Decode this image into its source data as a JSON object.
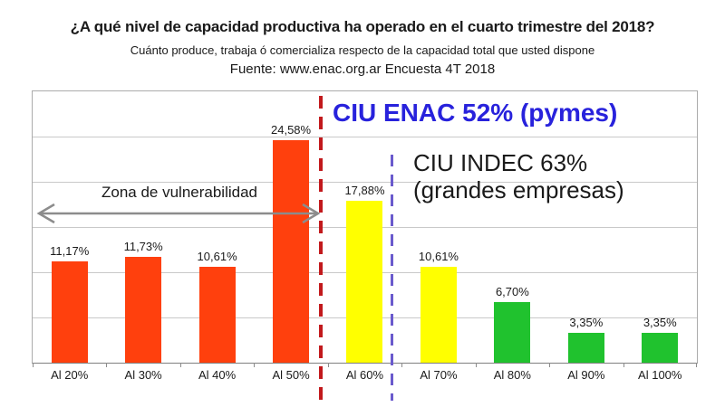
{
  "header": {
    "title": "¿A qué nivel de capacidad productiva ha operado en el cuarto trimestre del 2018?",
    "subtitle": "Cuánto produce, trabaja ó comercializa respecto de la capacidad total que usted dispone",
    "source": "Fuente: www.enac.org.ar Encuesta 4T 2018"
  },
  "chart_data": {
    "type": "bar",
    "title": "¿A qué nivel de capacidad productiva ha operado en el cuarto trimestre del 2018?",
    "categories": [
      "Al 20%",
      "Al 30%",
      "Al 40%",
      "Al 50%",
      "Al 60%",
      "Al 70%",
      "Al 80%",
      "Al 90%",
      "Al 100%"
    ],
    "values": [
      11.17,
      11.73,
      10.61,
      24.58,
      17.88,
      10.61,
      6.7,
      3.35,
      3.35
    ],
    "value_labels": [
      "11,17%",
      "11,73%",
      "10,61%",
      "24,58%",
      "17,88%",
      "10,61%",
      "6,70%",
      "3,35%",
      "3,35%"
    ],
    "bar_colors": [
      "#ff400d",
      "#ff400d",
      "#ff400d",
      "#ff400d",
      "#ffff00",
      "#ffff00",
      "#20c22e",
      "#20c22e",
      "#20c22e"
    ],
    "xlabel": "",
    "ylabel": "",
    "ylim": [
      0,
      30
    ],
    "gridline_step": 5,
    "grid": "horizontal",
    "legend": "none"
  },
  "annotations": {
    "zona": {
      "label": "Zona de vulnerabilidad",
      "arrow_color": "#8c8c8c",
      "span_categories": [
        "Al 20%",
        "Al 50%"
      ]
    },
    "ciu_enac": {
      "label": "CIU ENAC 52% (pymes)",
      "color": "#2822dc",
      "marker_color": "#c2191c",
      "marker_value": "52%",
      "marker_between": [
        "Al 50%",
        "Al 60%"
      ]
    },
    "ciu_indec": {
      "line1": "CIU INDEC 63%",
      "line2": "(grandes empresas)",
      "color": "#1a1a1a",
      "marker_color": "#6a5acd",
      "marker_value": "63%",
      "marker_between": [
        "Al 60%",
        "Al 70%"
      ]
    }
  }
}
